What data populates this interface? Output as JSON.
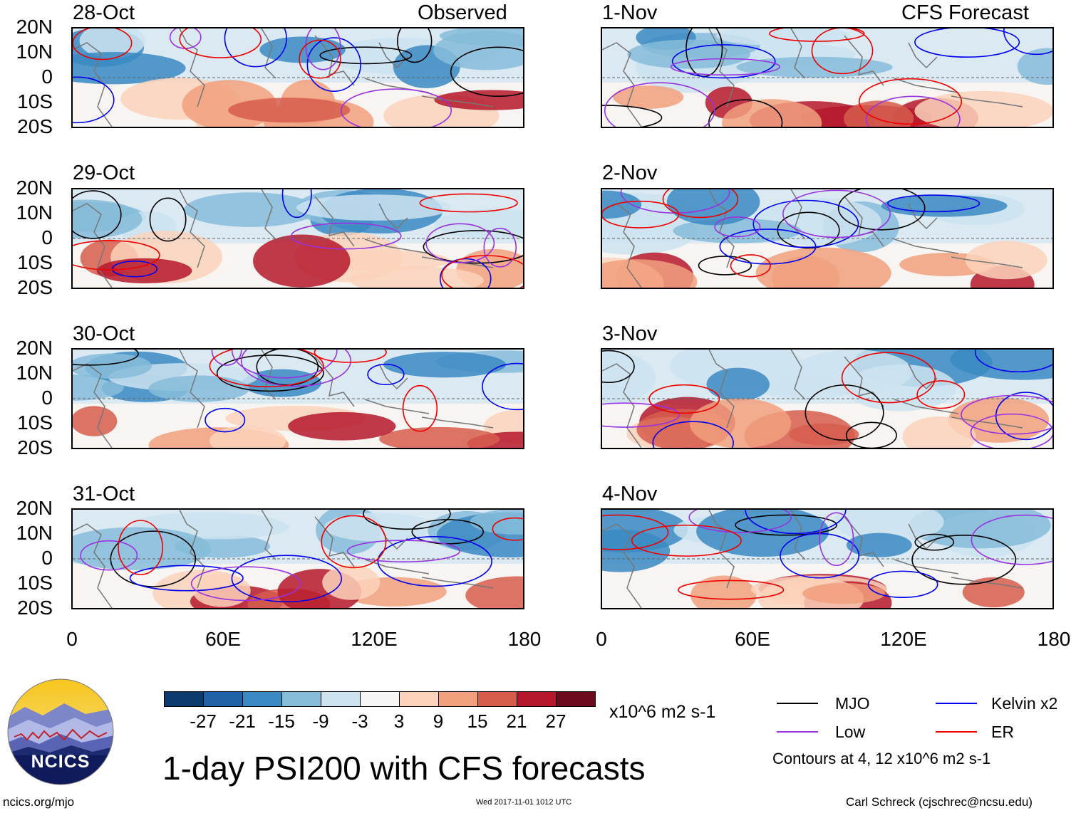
{
  "panel_header": {
    "left": "Observed",
    "right": "CFS Forecast"
  },
  "panels": [
    {
      "date": "28-Oct",
      "column": "observed"
    },
    {
      "date": "29-Oct",
      "column": "observed"
    },
    {
      "date": "30-Oct",
      "column": "observed"
    },
    {
      "date": "31-Oct",
      "column": "observed"
    },
    {
      "date": "1-Nov",
      "column": "forecast"
    },
    {
      "date": "2-Nov",
      "column": "forecast"
    },
    {
      "date": "3-Nov",
      "column": "forecast"
    },
    {
      "date": "4-Nov",
      "column": "forecast"
    }
  ],
  "y_ticks": [
    "20N",
    "10N",
    "0",
    "10S",
    "20S"
  ],
  "x_ticks": [
    "0",
    "60E",
    "120E",
    "180"
  ],
  "colorbar": {
    "labels": [
      "-27",
      "-21",
      "-15",
      "-9",
      "-3",
      "3",
      "9",
      "15",
      "21",
      "27"
    ],
    "colors": [
      "#0a3a6e",
      "#1f62a8",
      "#3b8ac3",
      "#86bcd9",
      "#cde3f0",
      "#f6f6f6",
      "#fcd2bb",
      "#f1a07e",
      "#d65d4c",
      "#b5172b",
      "#6d0a1e"
    ],
    "units": "x10^6 m2 s-1"
  },
  "legend": {
    "mjo": {
      "label": "MJO",
      "color": "#000000"
    },
    "kelvin": {
      "label": "Kelvin x2",
      "color": "#0000ee"
    },
    "low": {
      "label": "Low",
      "color": "#9932e0"
    },
    "er": {
      "label": "ER",
      "color": "#ee0000"
    },
    "contours_note": "Contours at 4, 12 x10^6 m2 s-1"
  },
  "title": "1-day PSI200 with CFS forecasts",
  "logo_text": "NCICS",
  "footer": {
    "left": "ncics.org/mjo",
    "center": "Wed 2017-11-01 1012 UTC",
    "right": "Carl Schreck (cjschrec@ncsu.edu)"
  },
  "chart_data": {
    "type": "heatmap",
    "variable": "1-day PSI200 anomaly",
    "units": "x10^6 m2 s-1",
    "x_range": [
      0,
      180
    ],
    "y_range": [
      -20,
      20
    ],
    "contour_levels": [
      4,
      12
    ],
    "overlays": [
      "MJO",
      "Kelvin x2",
      "Low",
      "ER"
    ]
  }
}
